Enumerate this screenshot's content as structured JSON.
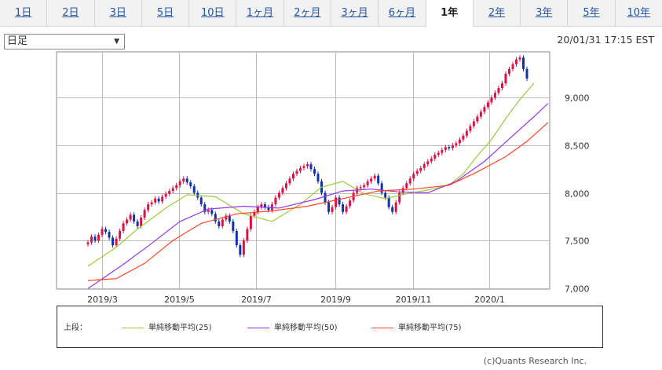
{
  "tabs": [
    {
      "label": "1日",
      "active": false
    },
    {
      "label": "2日",
      "active": false
    },
    {
      "label": "3日",
      "active": false
    },
    {
      "label": "5日",
      "active": false
    },
    {
      "label": "10日",
      "active": false
    },
    {
      "label": "1ヶ月",
      "active": false
    },
    {
      "label": "2ヶ月",
      "active": false
    },
    {
      "label": "3ヶ月",
      "active": false
    },
    {
      "label": "6ヶ月",
      "active": false
    },
    {
      "label": "1年",
      "active": true
    },
    {
      "label": "2年",
      "active": false
    },
    {
      "label": "3年",
      "active": false
    },
    {
      "label": "5年",
      "active": false
    },
    {
      "label": "10年",
      "active": false
    }
  ],
  "period_select": {
    "value": "日足"
  },
  "timestamp": "20/01/31 17:15 EST",
  "legend": {
    "label": "上段：",
    "items": [
      {
        "name": "単純移動平均(25)",
        "color": "#99cc33"
      },
      {
        "name": "単純移動平均(50)",
        "color": "#9933ee"
      },
      {
        "name": "単純移動平均(75)",
        "color": "#ff4422"
      }
    ]
  },
  "copyright": "(c)Quants Research Inc.",
  "chart_data": {
    "type": "candlestick",
    "x_ticks": [
      "2019/3",
      "2019/5",
      "2019/7",
      "2019/9",
      "2019/11",
      "2020/1"
    ],
    "y_ticks": [
      "7,000",
      "7,500",
      "8,000",
      "8,500",
      "9,000"
    ],
    "ylim": [
      6990,
      9480
    ],
    "grid": true,
    "up_color": "#dd1144",
    "down_color": "#1133aa",
    "candles_close": [
      7480,
      7540,
      7500,
      7560,
      7620,
      7590,
      7530,
      7450,
      7520,
      7600,
      7680,
      7720,
      7770,
      7700,
      7650,
      7740,
      7820,
      7880,
      7900,
      7940,
      7910,
      7960,
      7990,
      8020,
      8050,
      8080,
      8120,
      8150,
      8110,
      8070,
      8000,
      7950,
      7880,
      7800,
      7820,
      7780,
      7700,
      7650,
      7720,
      7760,
      7700,
      7600,
      7450,
      7350,
      7500,
      7620,
      7760,
      7800,
      7850,
      7880,
      7850,
      7820,
      7880,
      7950,
      8000,
      8050,
      8100,
      8150,
      8200,
      8230,
      8260,
      8280,
      8300,
      8250,
      8200,
      8120,
      8000,
      7900,
      7800,
      7850,
      7950,
      7880,
      7800,
      7860,
      7920,
      8000,
      8050,
      8060,
      8080,
      8120,
      8150,
      8180,
      8100,
      8000,
      7950,
      7850,
      7800,
      7900,
      8000,
      8050,
      8100,
      8150,
      8200,
      8230,
      8260,
      8300,
      8330,
      8360,
      8400,
      8420,
      8450,
      8480,
      8470,
      8500,
      8520,
      8560,
      8600,
      8650,
      8700,
      8750,
      8800,
      8850,
      8900,
      8950,
      9000,
      9050,
      9100,
      9150,
      9250,
      9300,
      9350,
      9400,
      9420,
      9300,
      9200
    ],
    "series": [
      {
        "name": "単純移動平均(25)",
        "color": "#99cc33",
        "points": [
          [
            0,
            7230
          ],
          [
            8,
            7430
          ],
          [
            14,
            7620
          ],
          [
            22,
            7840
          ],
          [
            28,
            7980
          ],
          [
            36,
            7960
          ],
          [
            44,
            7780
          ],
          [
            52,
            7700
          ],
          [
            60,
            7880
          ],
          [
            66,
            8060
          ],
          [
            72,
            8120
          ],
          [
            78,
            7990
          ],
          [
            84,
            7940
          ],
          [
            90,
            7990
          ],
          [
            96,
            8030
          ],
          [
            102,
            8080
          ],
          [
            106,
            8200
          ],
          [
            110,
            8390
          ],
          [
            114,
            8560
          ],
          [
            118,
            8780
          ],
          [
            122,
            8980
          ],
          [
            126,
            9150
          ]
        ]
      },
      {
        "name": "単純移動平均(50)",
        "color": "#9933ee",
        "points": [
          [
            0,
            6995
          ],
          [
            10,
            7250
          ],
          [
            18,
            7470
          ],
          [
            26,
            7700
          ],
          [
            34,
            7830
          ],
          [
            44,
            7860
          ],
          [
            54,
            7840
          ],
          [
            64,
            7930
          ],
          [
            72,
            8020
          ],
          [
            80,
            8040
          ],
          [
            88,
            8010
          ],
          [
            96,
            8000
          ],
          [
            104,
            8120
          ],
          [
            112,
            8330
          ],
          [
            120,
            8600
          ],
          [
            126,
            8800
          ],
          [
            130,
            8940
          ]
        ]
      },
      {
        "name": "単純移動平均(75)",
        "color": "#ff4422",
        "points": [
          [
            0,
            7080
          ],
          [
            8,
            7100
          ],
          [
            16,
            7260
          ],
          [
            24,
            7500
          ],
          [
            32,
            7680
          ],
          [
            42,
            7780
          ],
          [
            52,
            7810
          ],
          [
            62,
            7860
          ],
          [
            72,
            7940
          ],
          [
            82,
            8020
          ],
          [
            92,
            8040
          ],
          [
            102,
            8080
          ],
          [
            110,
            8220
          ],
          [
            118,
            8380
          ],
          [
            124,
            8540
          ],
          [
            130,
            8740
          ]
        ]
      }
    ]
  }
}
